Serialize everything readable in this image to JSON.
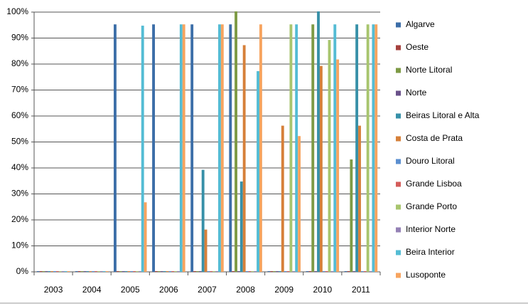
{
  "chart_data": {
    "type": "bar",
    "categories": [
      "2003",
      "2004",
      "2005",
      "2006",
      "2007",
      "2008",
      "2009",
      "2010",
      "2011"
    ],
    "series": [
      {
        "name": "Algarve",
        "color": "#3c6ea8",
        "values": [
          0,
          0,
          95,
          95,
          95,
          95,
          0,
          0,
          0
        ]
      },
      {
        "name": "Oeste",
        "color": "#a5403d",
        "values": [
          0,
          0,
          0,
          0,
          0,
          0,
          0,
          0,
          0
        ]
      },
      {
        "name": "Norte Litoral",
        "color": "#7d9a44",
        "values": [
          0,
          0,
          0,
          0,
          0,
          100,
          0,
          95,
          43
        ]
      },
      {
        "name": "Norte",
        "color": "#6a518a",
        "values": [
          0,
          0,
          0,
          0,
          0,
          0,
          0,
          0,
          0
        ]
      },
      {
        "name": "Beiras Litoral e Alta",
        "color": "#3790a8",
        "values": [
          0,
          0,
          0,
          0,
          39,
          34.5,
          0,
          100,
          95
        ]
      },
      {
        "name": "Costa de Prata",
        "color": "#d6803a",
        "values": [
          0,
          0,
          0,
          0,
          16,
          87,
          56,
          79,
          56
        ]
      },
      {
        "name": "Douro Litoral",
        "color": "#5b8fd0",
        "values": [
          0,
          0,
          0,
          0,
          0,
          0,
          0,
          0,
          0
        ]
      },
      {
        "name": "Grande Lisboa",
        "color": "#d45c5a",
        "values": [
          0,
          0,
          0,
          0,
          0,
          0,
          0,
          0,
          0
        ]
      },
      {
        "name": "Grande Porto",
        "color": "#a8c56e",
        "values": [
          0,
          0,
          0,
          0,
          0,
          0,
          95,
          89,
          95
        ]
      },
      {
        "name": "Interior Norte",
        "color": "#9481b5",
        "values": [
          0,
          0,
          0,
          0,
          0,
          0,
          0,
          0,
          0
        ]
      },
      {
        "name": "Beira Interior",
        "color": "#54bcd4",
        "values": [
          0,
          0,
          94.5,
          95,
          95,
          77,
          95,
          95,
          95
        ]
      },
      {
        "name": "Lusoponte",
        "color": "#f7a45f",
        "values": [
          0,
          0,
          26.5,
          95,
          95,
          95,
          52,
          81.5,
          95
        ]
      }
    ],
    "ylim": [
      0,
      100
    ],
    "yticks": [
      {
        "value": 0,
        "label": "0%"
      },
      {
        "value": 10,
        "label": "10%"
      },
      {
        "value": 20,
        "label": "20%"
      },
      {
        "value": 30,
        "label": "30%"
      },
      {
        "value": 40,
        "label": "40%"
      },
      {
        "value": 50,
        "label": "50%"
      },
      {
        "value": 60,
        "label": "60%"
      },
      {
        "value": 70,
        "label": "70%"
      },
      {
        "value": 80,
        "label": "80%"
      },
      {
        "value": 90,
        "label": "90%"
      },
      {
        "value": 100,
        "label": "100%"
      }
    ],
    "grid": true,
    "legend": "right"
  }
}
